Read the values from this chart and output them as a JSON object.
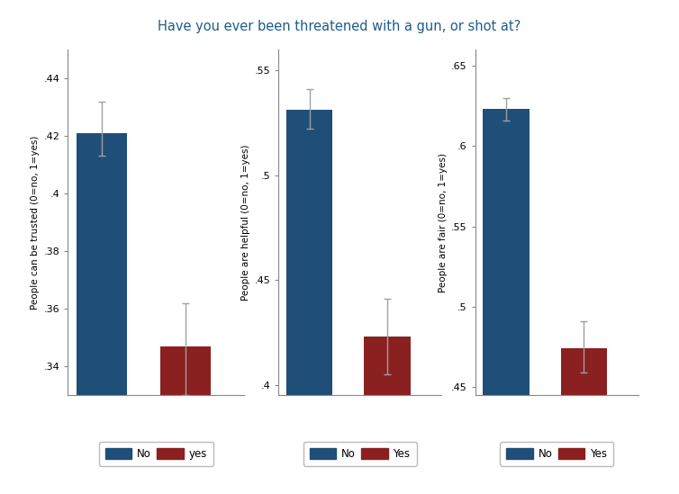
{
  "title": "Have you ever been threatened with a gun, or shot at?",
  "title_color": "#1F5C8B",
  "subplots": [
    {
      "ylabel": "People can be trusted (0=no, 1=yes)",
      "bars": [
        {
          "label": "No",
          "value": 0.421,
          "ci_low": 0.413,
          "ci_high": 0.432,
          "color": "#1F4E79"
        },
        {
          "label": "yes",
          "value": 0.347,
          "ci_low": 0.33,
          "ci_high": 0.362,
          "color": "#8B2020"
        }
      ],
      "ylim": [
        0.33,
        0.45
      ],
      "yticks": [
        0.34,
        0.36,
        0.38,
        0.4,
        0.42,
        0.44
      ],
      "ytick_labels": [
        ".34",
        ".36",
        ".38",
        ".4",
        ".42",
        ".44"
      ]
    },
    {
      "ylabel": "People are helpful (0=no, 1=yes)",
      "bars": [
        {
          "label": "No",
          "value": 0.531,
          "ci_low": 0.522,
          "ci_high": 0.541,
          "color": "#1F4E79"
        },
        {
          "label": "Yes",
          "value": 0.423,
          "ci_low": 0.405,
          "ci_high": 0.441,
          "color": "#8B2020"
        }
      ],
      "ylim": [
        0.395,
        0.56
      ],
      "yticks": [
        0.4,
        0.45,
        0.5,
        0.55
      ],
      "ytick_labels": [
        ".4",
        ".45",
        ".5",
        ".55"
      ]
    },
    {
      "ylabel": "People are fair (0=no, 1=yes)",
      "bars": [
        {
          "label": "No",
          "value": 0.623,
          "ci_low": 0.616,
          "ci_high": 0.63,
          "color": "#1F4E79"
        },
        {
          "label": "Yes",
          "value": 0.474,
          "ci_low": 0.459,
          "ci_high": 0.491,
          "color": "#8B2020"
        }
      ],
      "ylim": [
        0.445,
        0.66
      ],
      "yticks": [
        0.45,
        0.5,
        0.55,
        0.6,
        0.65
      ],
      "ytick_labels": [
        ".45",
        ".5",
        ".55",
        ".6",
        ".65"
      ]
    }
  ],
  "background_color": "#FFFFFF",
  "errorbar_color": "#A0A0A0",
  "errorbar_linewidth": 1.0,
  "errorbar_capsize": 3
}
